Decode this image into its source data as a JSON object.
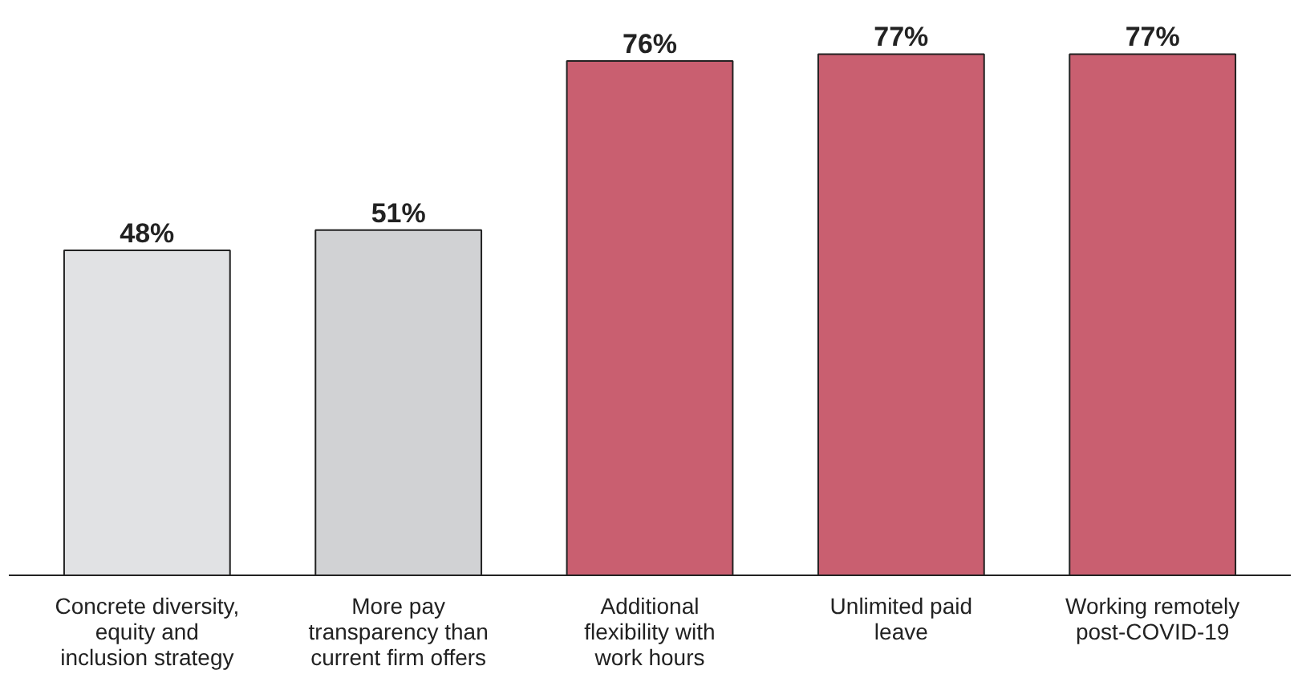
{
  "chart_data": {
    "type": "bar",
    "categories": [
      "Concrete diversity, equity and inclusion strategy",
      "More pay transparency than current firm offers",
      "Additional flexibility with work hours",
      "Unlimited paid leave",
      "Working remotely post-COVID-19"
    ],
    "values": [
      48,
      51,
      76,
      77,
      77
    ],
    "colors": [
      "#e1e2e4",
      "#d1d2d4",
      "#c95f70",
      "#c95f70",
      "#c95f70"
    ],
    "value_labels": [
      "48%",
      "51%",
      "76%",
      "77%",
      "77%"
    ],
    "tick_labels": "x"
  }
}
